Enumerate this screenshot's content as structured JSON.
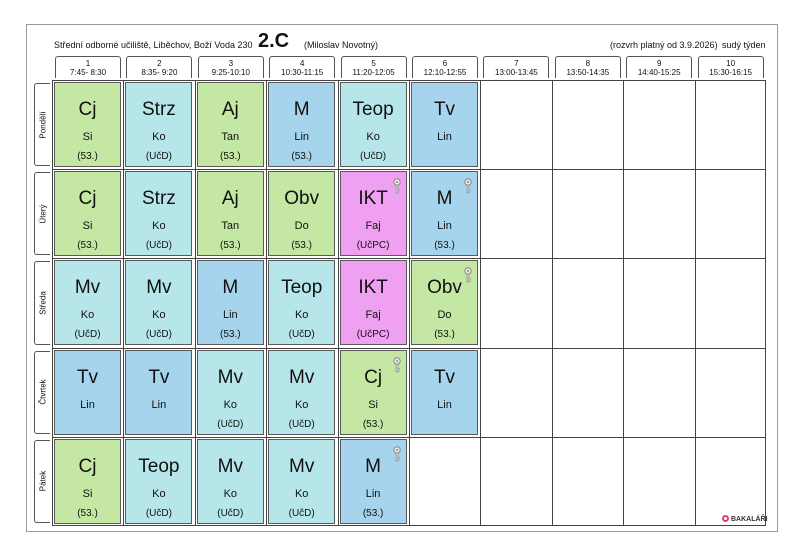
{
  "header": {
    "school": "Střední odborné učiliště, Liběchov, Boží Voda 230",
    "class": "2.C",
    "teacher": "(Miloslav Novotný)",
    "valid": "(rozvrh platný od 3.9.2026)",
    "week": "sudý týden"
  },
  "periods": [
    {
      "num": "1",
      "time": "7:45- 8:30"
    },
    {
      "num": "2",
      "time": "8:35- 9:20"
    },
    {
      "num": "3",
      "time": "9:25-10:10"
    },
    {
      "num": "4",
      "time": "10:30-11:15"
    },
    {
      "num": "5",
      "time": "11:20-12:05"
    },
    {
      "num": "6",
      "time": "12:10-12:55"
    },
    {
      "num": "7",
      "time": "13:00-13:45"
    },
    {
      "num": "8",
      "time": "13:50-14:35"
    },
    {
      "num": "9",
      "time": "14:40-15:25"
    },
    {
      "num": "10",
      "time": "15:30-16:15"
    }
  ],
  "days": [
    "Pondělí",
    "Úterý",
    "Středa",
    "Čtvrtek",
    "Pátek"
  ],
  "colors": {
    "green": "#c4e8a4",
    "cyan": "#b7e6ea",
    "blue": "#a6d4ec",
    "pink": "#f0a0f0"
  },
  "lessons": [
    [
      {
        "subject": "Cj",
        "teacher": "Si",
        "room": "(53.)",
        "color": "#c4e8a4",
        "key": false
      },
      {
        "subject": "Strz",
        "teacher": "Ko",
        "room": "(UčD)",
        "color": "#b7e6ea",
        "key": false
      },
      {
        "subject": "Aj",
        "teacher": "Tan",
        "room": "(53.)",
        "color": "#c4e8a4",
        "key": false
      },
      {
        "subject": "M",
        "teacher": "Lin",
        "room": "(53.)",
        "color": "#a6d4ec",
        "key": false
      },
      {
        "subject": "Teop",
        "teacher": "Ko",
        "room": "(UčD)",
        "color": "#b7e6ea",
        "key": false
      },
      {
        "subject": "Tv",
        "teacher": "Lin",
        "room": "",
        "color": "#a6d4ec",
        "key": false
      }
    ],
    [
      {
        "subject": "Cj",
        "teacher": "Si",
        "room": "(53.)",
        "color": "#c4e8a4",
        "key": false
      },
      {
        "subject": "Strz",
        "teacher": "Ko",
        "room": "(UčD)",
        "color": "#b7e6ea",
        "key": false
      },
      {
        "subject": "Aj",
        "teacher": "Tan",
        "room": "(53.)",
        "color": "#c4e8a4",
        "key": false
      },
      {
        "subject": "Obv",
        "teacher": "Do",
        "room": "(53.)",
        "color": "#c4e8a4",
        "key": false
      },
      {
        "subject": "IKT",
        "teacher": "Faj",
        "room": "(UčPC)",
        "color": "#f0a0f0",
        "key": true
      },
      {
        "subject": "M",
        "teacher": "Lin",
        "room": "(53.)",
        "color": "#a6d4ec",
        "key": true
      }
    ],
    [
      {
        "subject": "Mv",
        "teacher": "Ko",
        "room": "(UčD)",
        "color": "#b7e6ea",
        "key": false
      },
      {
        "subject": "Mv",
        "teacher": "Ko",
        "room": "(UčD)",
        "color": "#b7e6ea",
        "key": false
      },
      {
        "subject": "M",
        "teacher": "Lin",
        "room": "(53.)",
        "color": "#a6d4ec",
        "key": false
      },
      {
        "subject": "Teop",
        "teacher": "Ko",
        "room": "(UčD)",
        "color": "#b7e6ea",
        "key": false
      },
      {
        "subject": "IKT",
        "teacher": "Faj",
        "room": "(UčPC)",
        "color": "#f0a0f0",
        "key": false
      },
      {
        "subject": "Obv",
        "teacher": "Do",
        "room": "(53.)",
        "color": "#c4e8a4",
        "key": true
      }
    ],
    [
      {
        "subject": "Tv",
        "teacher": "Lin",
        "room": "",
        "color": "#a6d4ec",
        "key": false
      },
      {
        "subject": "Tv",
        "teacher": "Lin",
        "room": "",
        "color": "#a6d4ec",
        "key": false
      },
      {
        "subject": "Mv",
        "teacher": "Ko",
        "room": "(UčD)",
        "color": "#b7e6ea",
        "key": false
      },
      {
        "subject": "Mv",
        "teacher": "Ko",
        "room": "(UčD)",
        "color": "#b7e6ea",
        "key": false
      },
      {
        "subject": "Cj",
        "teacher": "Si",
        "room": "(53.)",
        "color": "#c4e8a4",
        "key": true
      },
      {
        "subject": "Tv",
        "teacher": "Lin",
        "room": "",
        "color": "#a6d4ec",
        "key": false
      }
    ],
    [
      {
        "subject": "Cj",
        "teacher": "Si",
        "room": "(53.)",
        "color": "#c4e8a4",
        "key": false
      },
      {
        "subject": "Teop",
        "teacher": "Ko",
        "room": "(UčD)",
        "color": "#b7e6ea",
        "key": false
      },
      {
        "subject": "Mv",
        "teacher": "Ko",
        "room": "(UčD)",
        "color": "#b7e6ea",
        "key": false
      },
      {
        "subject": "Mv",
        "teacher": "Ko",
        "room": "(UčD)",
        "color": "#b7e6ea",
        "key": false
      },
      {
        "subject": "M",
        "teacher": "Lin",
        "room": "(53.)",
        "color": "#a6d4ec",
        "key": true
      }
    ]
  ],
  "logo": "BAKALÁŘI",
  "key_icon": "key-icon"
}
